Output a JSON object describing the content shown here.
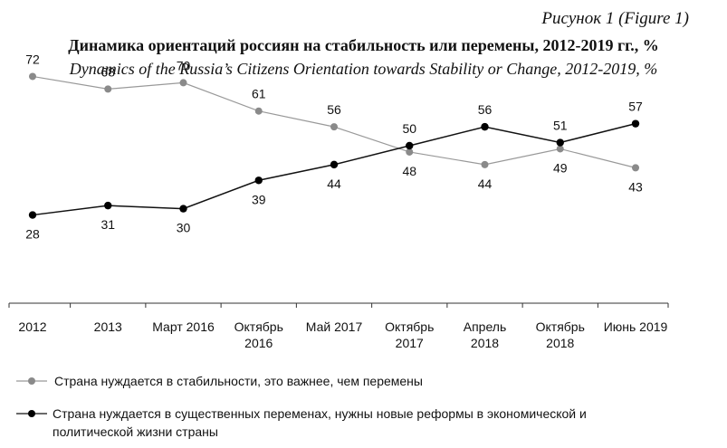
{
  "figure_label": "Рисунок 1 (Figure 1)",
  "chart_data": {
    "type": "line",
    "title": "Динамика ориентаций россиян на стабильность или перемены, 2012-2019 гг., %",
    "subtitle": "Dynamics of the Russia’s Citizens Orientation towards Stability or Change, 2012-2019, %",
    "categories": [
      [
        "2012"
      ],
      [
        "2013"
      ],
      [
        "Март 2016"
      ],
      [
        "Октябрь",
        "2016"
      ],
      [
        "Май 2017"
      ],
      [
        "Октябрь",
        "2017"
      ],
      [
        "Апрель",
        "2018"
      ],
      [
        "Октябрь",
        "2018"
      ],
      [
        "Июнь 2019"
      ]
    ],
    "ylim": [
      0,
      90
    ],
    "grid": false,
    "legend_position": "bottom",
    "series": [
      {
        "name": "Страна нуждается в стабильности, это важнее, чем перемены",
        "values": [
          72,
          68,
          70,
          61,
          56,
          48,
          44,
          49,
          43
        ],
        "color": "#999999",
        "marker_color": "#8a8a8a"
      },
      {
        "name": "Страна нуждается в существенных переменах, нужны новые реформы в экономической и политической жизни страны",
        "values": [
          28,
          31,
          30,
          39,
          44,
          50,
          56,
          51,
          57
        ],
        "color": "#111111",
        "marker_color": "#000000"
      }
    ],
    "legend_lines": [
      [
        "Страна нуждается в стабильности, это важнее, чем перемены"
      ],
      [
        "Страна нуждается в существенных переменах, нужны новые реформы в экономической и",
        "политической жизни страны"
      ]
    ]
  }
}
